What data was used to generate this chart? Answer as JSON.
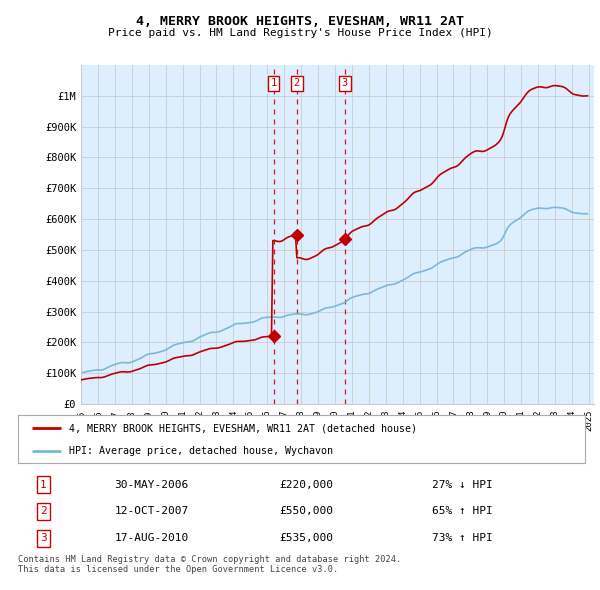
{
  "title": "4, MERRY BROOK HEIGHTS, EVESHAM, WR11 2AT",
  "subtitle": "Price paid vs. HM Land Registry's House Price Index (HPI)",
  "ylim": [
    0,
    1100000
  ],
  "yticks": [
    0,
    100000,
    200000,
    300000,
    400000,
    500000,
    600000,
    700000,
    800000,
    900000,
    1000000
  ],
  "ytick_labels": [
    "£0",
    "£100K",
    "£200K",
    "£300K",
    "£400K",
    "£500K",
    "£600K",
    "£700K",
    "£800K",
    "£900K",
    "£1M"
  ],
  "x_start_year": 1995,
  "x_end_year": 2025,
  "hpi_color": "#7ab8d9",
  "price_color": "#c00000",
  "vline_color": "#cc0000",
  "chart_bg_color": "#ddeeff",
  "transaction_years": [
    2006.375,
    2007.75,
    2010.583
  ],
  "transaction_prices": [
    220000,
    550000,
    535000
  ],
  "transaction_labels": [
    "1",
    "2",
    "3"
  ],
  "legend_label_price": "4, MERRY BROOK HEIGHTS, EVESHAM, WR11 2AT (detached house)",
  "legend_label_hpi": "HPI: Average price, detached house, Wychavon",
  "table_data": [
    [
      "1",
      "30-MAY-2006",
      "£220,000",
      "27% ↓ HPI"
    ],
    [
      "2",
      "12-OCT-2007",
      "£550,000",
      "65% ↑ HPI"
    ],
    [
      "3",
      "17-AUG-2010",
      "£535,000",
      "73% ↑ HPI"
    ]
  ],
  "footer": "Contains HM Land Registry data © Crown copyright and database right 2024.\nThis data is licensed under the Open Government Licence v3.0.",
  "background_color": "#ffffff",
  "grid_color": "#cccccc"
}
